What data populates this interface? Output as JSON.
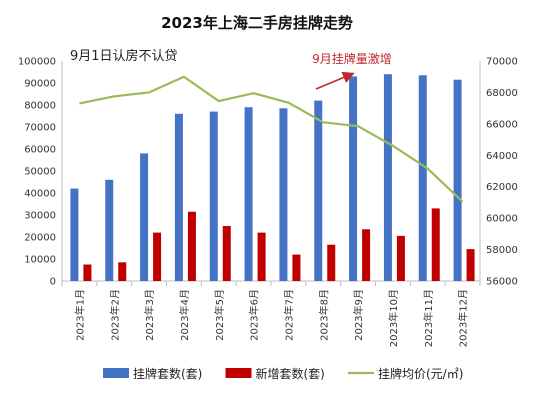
{
  "chart_data": {
    "type": "bar",
    "title": "2023年上海二手房挂牌走势",
    "note": "9月1日认房不认贷",
    "annotation": "9月挂牌量激增",
    "categories": [
      "2023年1月",
      "2023年2月",
      "2023年3月",
      "2023年4月",
      "2023年5月",
      "2023年6月",
      "2023年7月",
      "2023年8月",
      "2023年9月",
      "2023年10月",
      "2023年11月",
      "2023年12月"
    ],
    "left_axis": {
      "min": 0,
      "max": 100000,
      "step": 10000
    },
    "right_axis": {
      "min": 56000,
      "max": 70000,
      "step": 2000
    },
    "series": [
      {
        "name": "挂牌套数(套)",
        "axis": "left",
        "kind": "bar",
        "color": "#4472c4",
        "values": [
          42000,
          46000,
          58000,
          76000,
          77000,
          79000,
          78500,
          82000,
          93000,
          94000,
          93500,
          91500
        ]
      },
      {
        "name": "新增套数(套)",
        "axis": "left",
        "kind": "bar",
        "color": "#c00000",
        "values": [
          7500,
          8500,
          22000,
          31500,
          25000,
          22000,
          12000,
          16500,
          23500,
          20500,
          33000,
          14500
        ]
      },
      {
        "name": "挂牌均价(元/㎡)",
        "axis": "right",
        "kind": "line",
        "color": "#9bbb59",
        "values": [
          67300,
          67750,
          68000,
          69000,
          67450,
          67950,
          67350,
          66100,
          65850,
          64600,
          63150,
          61050
        ]
      }
    ],
    "legend_position": "bottom",
    "grid": false
  }
}
